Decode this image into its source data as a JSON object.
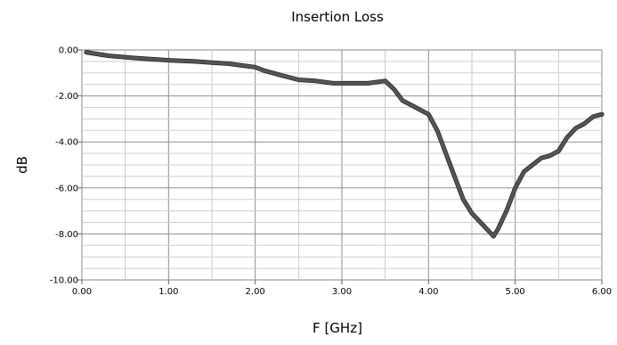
{
  "chart_data": {
    "type": "line",
    "title": "Insertion Loss",
    "xlabel": "F [GHz]",
    "ylabel": "dB",
    "xlim": [
      0,
      6
    ],
    "ylim": [
      -10,
      0
    ],
    "x_ticks": [
      "0.00",
      "1.00",
      "2.00",
      "3.00",
      "4.00",
      "5.00",
      "6.00"
    ],
    "y_ticks": [
      "0.00",
      "-2.00",
      "-4.00",
      "-6.00",
      "-8.00",
      "-10.00"
    ],
    "grid": true,
    "series": [
      {
        "color": "#555555",
        "x": [
          0.05,
          0.3,
          0.6,
          1.0,
          1.3,
          1.5,
          1.7,
          1.9,
          2.0,
          2.1,
          2.3,
          2.5,
          2.7,
          2.9,
          3.1,
          3.3,
          3.5,
          3.6,
          3.7,
          3.8,
          3.9,
          4.0,
          4.1,
          4.2,
          4.3,
          4.4,
          4.5,
          4.6,
          4.7,
          4.75,
          4.8,
          4.9,
          5.0,
          5.1,
          5.2,
          5.3,
          5.4,
          5.5,
          5.6,
          5.7,
          5.8,
          5.9,
          6.0
        ],
        "y": [
          -0.1,
          -0.25,
          -0.35,
          -0.45,
          -0.5,
          -0.55,
          -0.6,
          -0.7,
          -0.75,
          -0.9,
          -1.1,
          -1.3,
          -1.35,
          -1.45,
          -1.45,
          -1.45,
          -1.35,
          -1.7,
          -2.2,
          -2.4,
          -2.6,
          -2.8,
          -3.5,
          -4.5,
          -5.5,
          -6.5,
          -7.1,
          -7.5,
          -7.9,
          -8.1,
          -7.8,
          -7.0,
          -6.0,
          -5.3,
          -5.0,
          -4.7,
          -4.6,
          -4.4,
          -3.8,
          -3.4,
          -3.2,
          -2.9,
          -2.8
        ]
      }
    ]
  }
}
